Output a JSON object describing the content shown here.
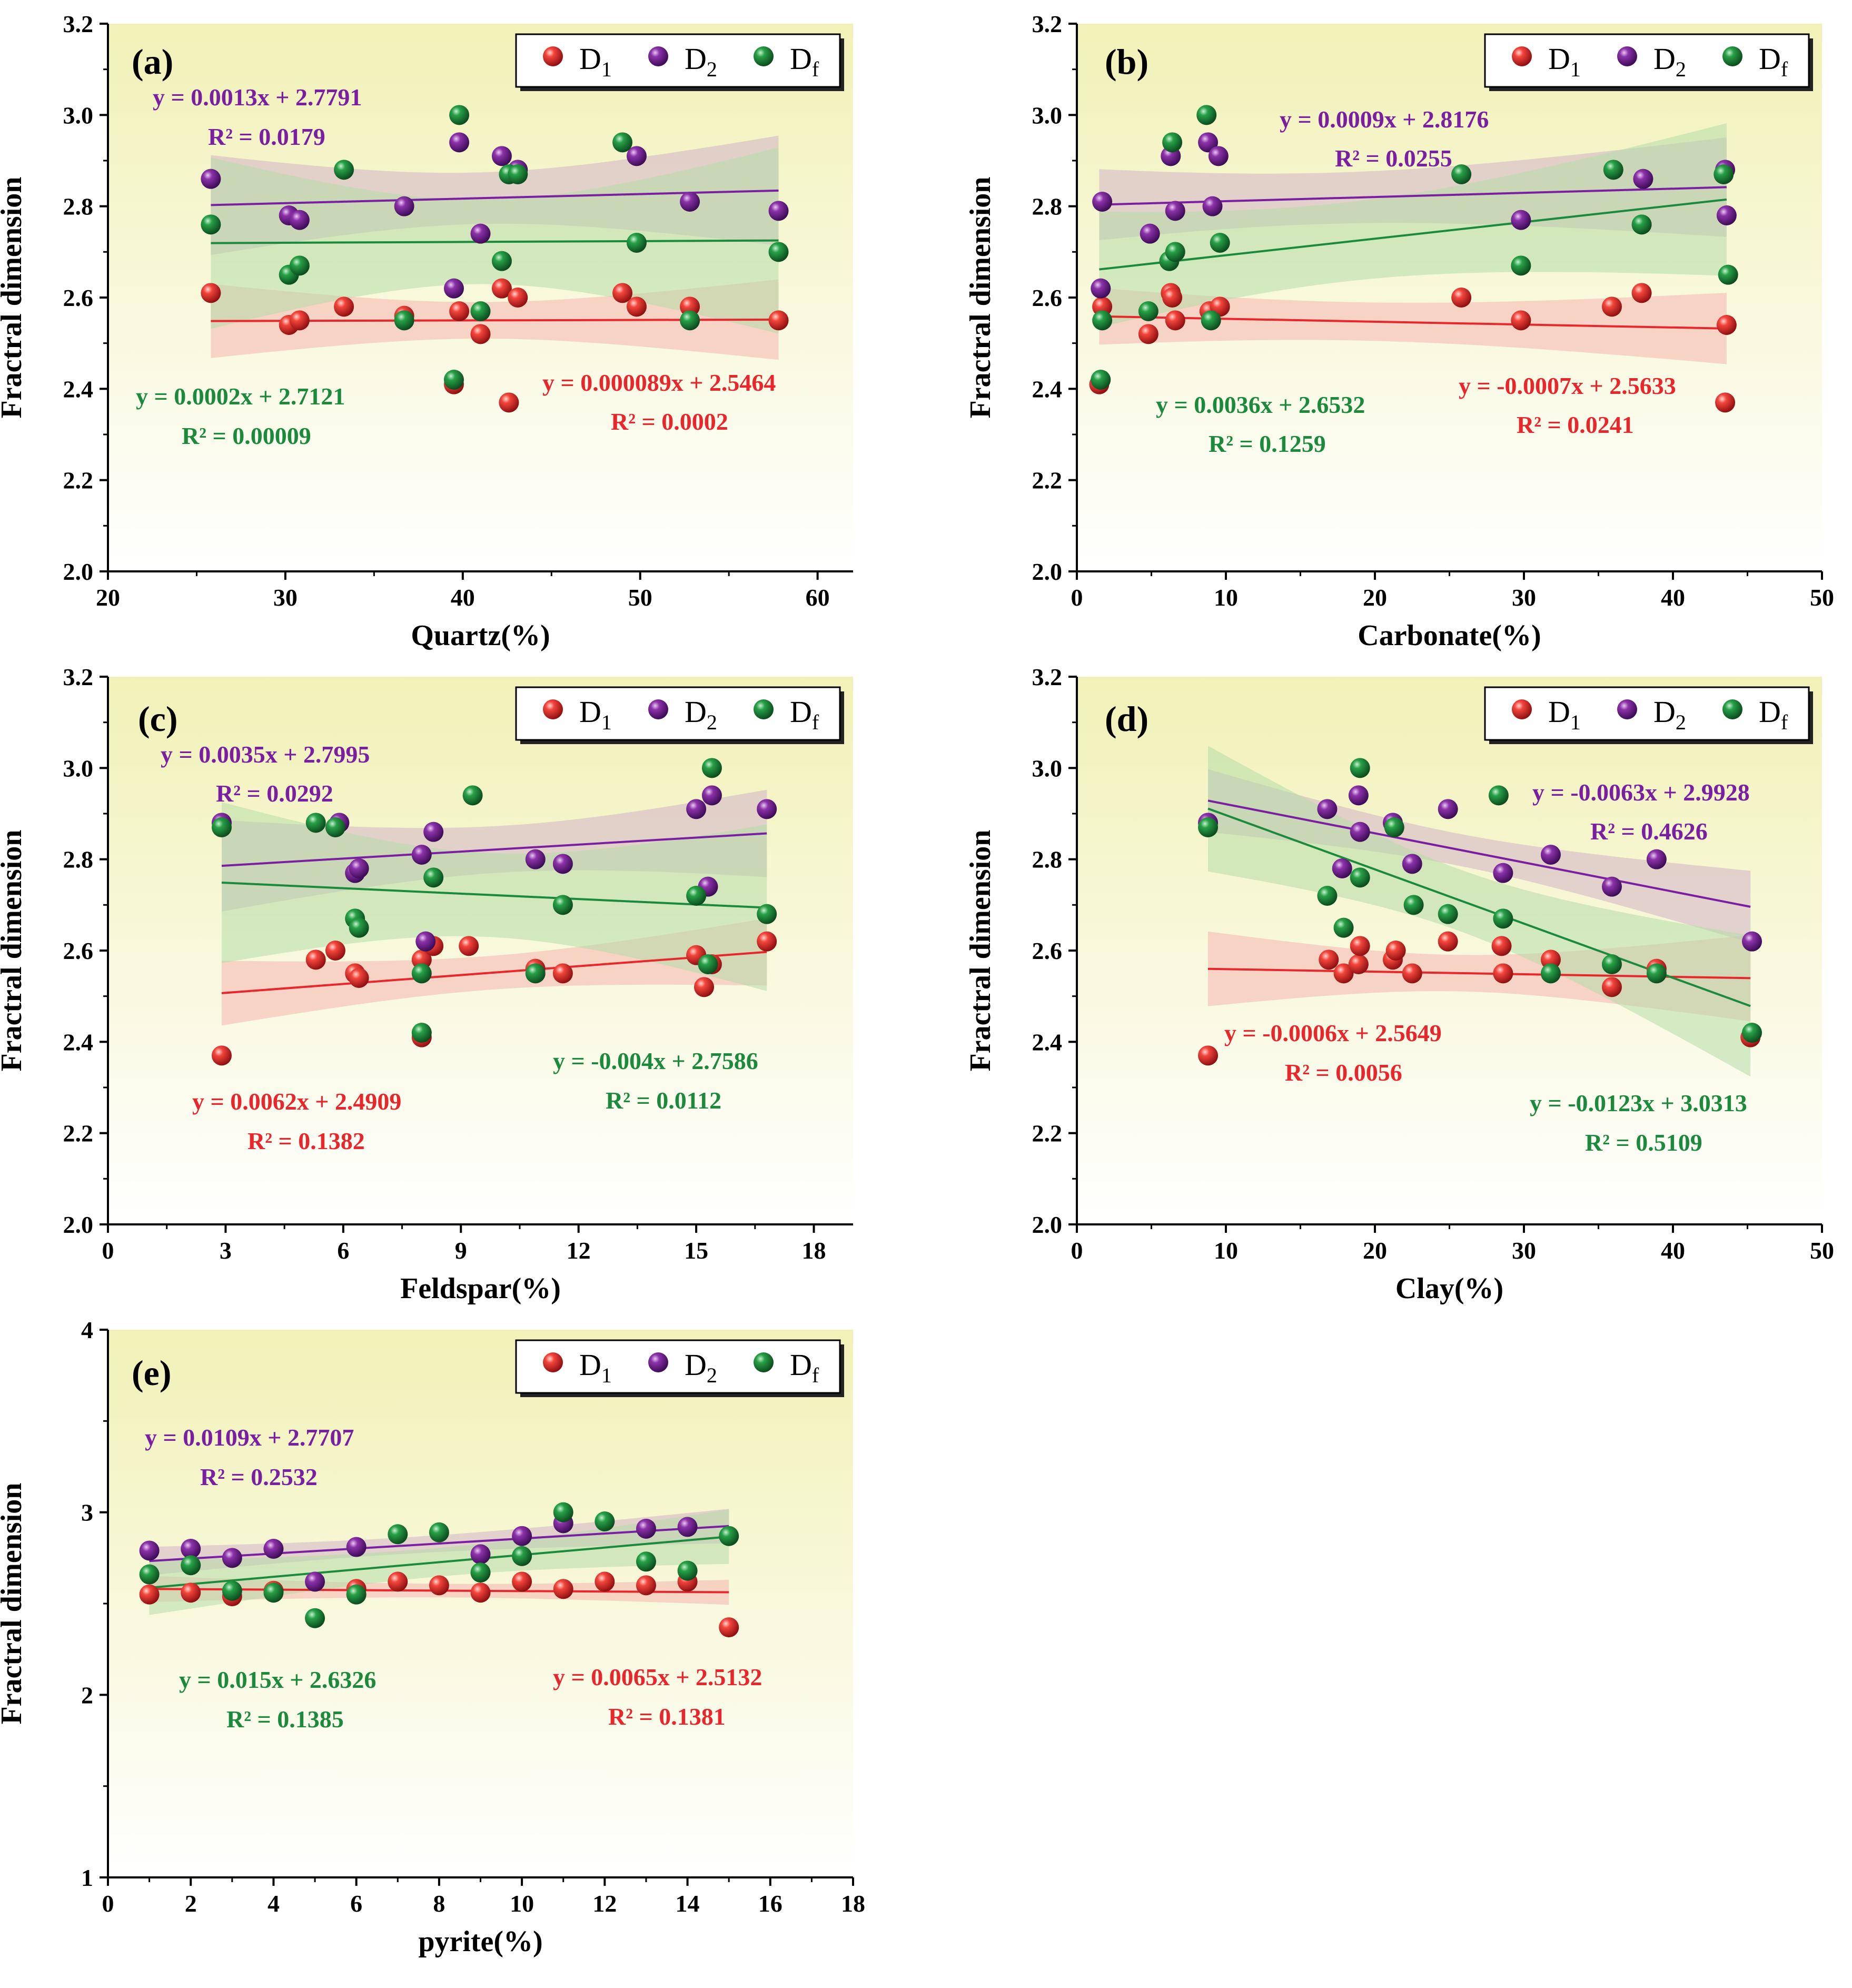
{
  "y_axis_title": "Fractral dimension",
  "colors": {
    "D1": "#e8262b",
    "D2": "#7b1fa2",
    "Df": "#1b8a3c",
    "band_D1": "#f5b4b0",
    "band_D2": "#d2b2c6",
    "band_Df": "#b5dca8"
  },
  "legend": {
    "D1": {
      "base": "D",
      "sub": "1"
    },
    "D2": {
      "base": "D",
      "sub": "2"
    },
    "Df": {
      "base": "D",
      "sub": "f"
    }
  },
  "chart_data": [
    {
      "label": "(a)",
      "type": "scatter",
      "xlabel": "Quartz(%)",
      "ylabel": "Fractral dimension",
      "xlim": [
        20,
        62
      ],
      "ylim": [
        2.0,
        3.2
      ],
      "xticks": [
        "20",
        "30",
        "40",
        "50",
        "60"
      ],
      "yticks": [
        "2.0",
        "2.2",
        "2.4",
        "2.6",
        "2.8",
        "3.0",
        "3.2"
      ],
      "series": [
        {
          "name": "D1",
          "x": [
            25.8,
            30.2,
            30.8,
            33.3,
            36.7,
            39.5,
            39.8,
            41.0,
            42.2,
            42.6,
            43.1,
            49.0,
            49.8,
            52.8,
            57.8
          ],
          "y": [
            2.61,
            2.54,
            2.55,
            2.58,
            2.56,
            2.41,
            2.57,
            2.52,
            2.62,
            2.37,
            2.6,
            2.61,
            2.58,
            2.58,
            2.55
          ],
          "fit": [
            25.8,
            57.8
          ],
          "equation": "y = 0.000089x + 2.5464",
          "r2": "R² = 0.0002"
        },
        {
          "name": "D2",
          "x": [
            25.8,
            30.2,
            30.8,
            36.7,
            39.5,
            39.8,
            41.0,
            42.2,
            43.1,
            49.8,
            52.8,
            57.8
          ],
          "y": [
            2.86,
            2.78,
            2.77,
            2.8,
            2.62,
            2.94,
            2.74,
            2.91,
            2.88,
            2.91,
            2.81,
            2.79
          ],
          "fit": [
            25.8,
            57.8
          ],
          "equation": "y = 0.0013x + 2.7791",
          "r2": "R² = 0.0179"
        },
        {
          "name": "Df",
          "x": [
            25.8,
            30.2,
            30.8,
            33.3,
            36.7,
            39.5,
            39.8,
            41.0,
            42.2,
            42.6,
            43.1,
            49.0,
            49.8,
            52.8,
            57.8
          ],
          "y": [
            2.76,
            2.65,
            2.67,
            2.88,
            2.55,
            2.42,
            3.0,
            2.57,
            2.68,
            2.87,
            2.87,
            2.94,
            2.72,
            2.55,
            2.7
          ],
          "fit": [
            25.8,
            57.8
          ],
          "equation": "y = 0.0002x + 2.7121",
          "r2": "R² = 0.00009"
        }
      ]
    },
    {
      "label": "(b)",
      "type": "scatter",
      "xlabel": "Carbonate(%)",
      "ylabel": "Fractral dimension",
      "xlim": [
        0,
        50
      ],
      "ylim": [
        2.0,
        3.2
      ],
      "xticks": [
        "0",
        "10",
        "20",
        "30",
        "40",
        "50"
      ],
      "yticks": [
        "2.0",
        "2.2",
        "2.4",
        "2.6",
        "2.8",
        "3.0",
        "3.2"
      ],
      "series": [
        {
          "name": "D1",
          "x": [
            1.5,
            1.7,
            4.8,
            6.3,
            6.4,
            6.6,
            8.9,
            9.6,
            25.8,
            29.8,
            35.9,
            37.9,
            43.5,
            43.6
          ],
          "y": [
            2.41,
            2.58,
            2.52,
            2.61,
            2.6,
            2.55,
            2.57,
            2.58,
            2.6,
            2.55,
            2.58,
            2.61,
            2.37,
            2.54
          ],
          "fit": [
            1.5,
            43.6
          ],
          "equation": "y = -0.0007x + 2.5633",
          "r2": "R² = 0.0241"
        },
        {
          "name": "D2",
          "x": [
            1.6,
            1.7,
            4.9,
            6.3,
            6.6,
            8.8,
            9.1,
            9.5,
            29.8,
            38.0,
            43.5,
            43.6
          ],
          "y": [
            2.62,
            2.81,
            2.74,
            2.91,
            2.79,
            2.94,
            2.8,
            2.91,
            2.77,
            2.86,
            2.88,
            2.78
          ],
          "fit": [
            1.5,
            43.6
          ],
          "equation": "y = 0.0009x + 2.8176",
          "r2": "R² = 0.0255"
        },
        {
          "name": "Df",
          "x": [
            1.6,
            1.7,
            4.8,
            6.2,
            6.4,
            6.6,
            8.7,
            9.0,
            9.6,
            25.8,
            29.8,
            36.0,
            37.9,
            43.4,
            43.7
          ],
          "y": [
            2.42,
            2.55,
            2.57,
            2.68,
            2.94,
            2.7,
            3.0,
            2.55,
            2.72,
            2.87,
            2.67,
            2.88,
            2.76,
            2.87,
            2.65
          ],
          "fit": [
            1.5,
            43.6
          ],
          "equation": "y = 0.0036x + 2.6532",
          "r2": "R² = 0.1259"
        }
      ]
    },
    {
      "label": "(c)",
      "type": "scatter",
      "xlabel": "Feldspar(%)",
      "ylabel": "Fractral dimension",
      "xlim": [
        0,
        19
      ],
      "ylim": [
        2.0,
        3.2
      ],
      "xticks": [
        "0",
        "3",
        "6",
        "9",
        "12",
        "15",
        "18"
      ],
      "yticks": [
        "2.0",
        "2.2",
        "2.4",
        "2.6",
        "2.8",
        "3.0",
        "3.2"
      ],
      "series": [
        {
          "name": "D1",
          "x": [
            2.9,
            5.3,
            5.8,
            6.3,
            6.4,
            8.0,
            8.0,
            8.3,
            9.2,
            10.9,
            11.6,
            15.0,
            15.2,
            15.4,
            16.8
          ],
          "y": [
            2.37,
            2.58,
            2.6,
            2.55,
            2.54,
            2.41,
            2.58,
            2.61,
            2.61,
            2.56,
            2.55,
            2.59,
            2.52,
            2.57,
            2.62
          ],
          "fit": [
            2.9,
            16.8
          ],
          "equation": "y = 0.0062x + 2.4909",
          "r2": "R² = 0.1382"
        },
        {
          "name": "D2",
          "x": [
            2.9,
            5.9,
            6.3,
            6.4,
            8.0,
            8.1,
            8.3,
            10.9,
            11.6,
            15.0,
            15.3,
            15.4,
            16.8
          ],
          "y": [
            2.88,
            2.88,
            2.77,
            2.78,
            2.81,
            2.62,
            2.86,
            2.8,
            2.79,
            2.91,
            2.74,
            2.94,
            2.91
          ],
          "fit": [
            2.9,
            16.8
          ],
          "equation": "y = 0.0035x + 2.7995",
          "r2": "R² = 0.0292"
        },
        {
          "name": "Df",
          "x": [
            2.9,
            5.3,
            5.8,
            6.3,
            6.4,
            8.0,
            8.0,
            8.3,
            9.3,
            10.9,
            11.6,
            15.0,
            15.3,
            15.4,
            16.8
          ],
          "y": [
            2.87,
            2.88,
            2.87,
            2.67,
            2.65,
            2.42,
            2.55,
            2.76,
            2.94,
            2.55,
            2.7,
            2.72,
            2.57,
            3.0,
            2.68
          ],
          "fit": [
            2.9,
            16.8
          ],
          "equation": "y = -0.004x + 2.7586",
          "r2": "R² = 0.0112"
        }
      ]
    },
    {
      "label": "(d)",
      "type": "scatter",
      "xlabel": "Clay(%)",
      "ylabel": "Fractral dimension",
      "xlim": [
        0,
        50
      ],
      "ylim": [
        2.0,
        3.2
      ],
      "xticks": [
        "0",
        "10",
        "20",
        "30",
        "40",
        "50"
      ],
      "yticks": [
        "2.0",
        "2.2",
        "2.4",
        "2.6",
        "2.8",
        "3.0",
        "3.2"
      ],
      "series": [
        {
          "name": "D1",
          "x": [
            8.8,
            16.9,
            17.9,
            18.9,
            19.0,
            21.2,
            21.4,
            22.5,
            24.9,
            28.5,
            28.6,
            31.8,
            35.9,
            38.9,
            45.2
          ],
          "y": [
            2.37,
            2.58,
            2.55,
            2.57,
            2.61,
            2.58,
            2.6,
            2.55,
            2.62,
            2.61,
            2.55,
            2.58,
            2.52,
            2.56,
            2.41
          ],
          "fit": [
            8.8,
            45.2
          ],
          "equation": "y = -0.0006x + 2.5649",
          "r2": "R² = 0.0056"
        },
        {
          "name": "D2",
          "x": [
            8.8,
            16.8,
            17.8,
            18.9,
            19.0,
            21.2,
            22.5,
            24.9,
            28.6,
            31.8,
            35.9,
            38.9,
            45.3
          ],
          "y": [
            2.88,
            2.91,
            2.78,
            2.94,
            2.86,
            2.88,
            2.79,
            2.91,
            2.77,
            2.81,
            2.74,
            2.8,
            2.62
          ],
          "fit": [
            8.8,
            45.2
          ],
          "equation": "y = -0.0063x + 2.9928",
          "r2": "R² = 0.4626"
        },
        {
          "name": "Df",
          "x": [
            8.8,
            16.8,
            17.9,
            19.0,
            19.0,
            21.3,
            22.6,
            24.9,
            28.3,
            28.6,
            31.8,
            35.9,
            38.9,
            45.3
          ],
          "y": [
            2.87,
            2.72,
            2.65,
            2.76,
            3.0,
            2.87,
            2.7,
            2.68,
            2.94,
            2.67,
            2.55,
            2.57,
            2.55,
            2.42
          ],
          "fit": [
            8.8,
            45.2
          ],
          "equation": "y = -0.0123x + 3.0313",
          "r2": "R² = 0.5109"
        }
      ]
    },
    {
      "label": "(e)",
      "type": "scatter",
      "xlabel": "pyrite(%)",
      "ylabel": "Fractral dimension",
      "xlim": [
        0,
        18
      ],
      "ylim": [
        1,
        4
      ],
      "xticks": [
        "0",
        "2",
        "4",
        "6",
        "8",
        "10",
        "12",
        "14",
        "16",
        "18"
      ],
      "yticks": [
        "1",
        "2",
        "3",
        "4"
      ],
      "series": [
        {
          "name": "D1",
          "x": [
            1,
            2,
            3,
            4,
            6,
            7,
            8,
            9,
            10,
            11,
            12,
            13,
            14,
            15
          ],
          "y": [
            2.55,
            2.56,
            2.54,
            2.57,
            2.58,
            2.62,
            2.6,
            2.56,
            2.62,
            2.58,
            2.62,
            2.6,
            2.62,
            2.37
          ],
          "fit": [
            1,
            15
          ],
          "equation": "y = 0.0065x + 2.5132",
          "r2": "R² = 0.1381"
        },
        {
          "name": "D2",
          "x": [
            1,
            2,
            3,
            4,
            5,
            6,
            9,
            10,
            11,
            13,
            14
          ],
          "y": [
            2.79,
            2.8,
            2.75,
            2.8,
            2.62,
            2.81,
            2.77,
            2.87,
            2.94,
            2.91,
            2.92
          ],
          "fit": [
            1,
            15
          ],
          "equation": "y = 0.0109x + 2.7707",
          "r2": "R² = 0.2532"
        },
        {
          "name": "Df",
          "x": [
            1,
            2,
            3,
            4,
            5,
            6,
            7,
            8,
            9,
            10,
            11,
            12,
            13,
            14,
            15
          ],
          "y": [
            2.66,
            2.71,
            2.57,
            2.56,
            2.42,
            2.55,
            2.88,
            2.89,
            2.67,
            2.76,
            3.0,
            2.95,
            2.73,
            2.68,
            2.87
          ],
          "fit": [
            1,
            15
          ],
          "equation": "y = 0.015x + 2.6326",
          "r2": "R² = 0.1385"
        }
      ]
    }
  ]
}
